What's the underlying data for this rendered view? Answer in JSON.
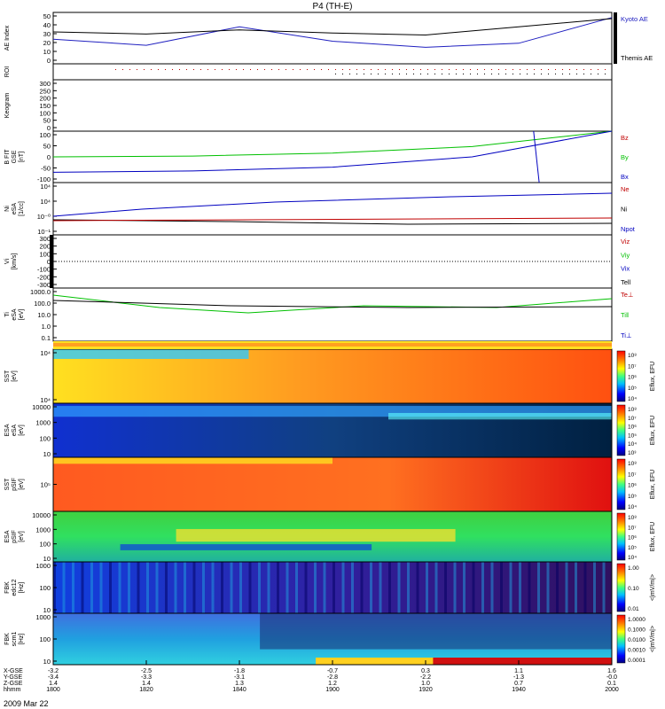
{
  "title": "P4 (TH-E)",
  "date_label": "2009 Mar 22",
  "bottom_axis": {
    "row_labels": [
      "X-GSE",
      "Y-GSE",
      "Z-GSE",
      "hhmm"
    ],
    "columns": [
      {
        "x": "-3.2",
        "y": "-3.4",
        "z": "1.4",
        "t": "1800"
      },
      {
        "x": "-2.5",
        "y": "-3.3",
        "z": "1.4",
        "t": "1820"
      },
      {
        "x": "-1.8",
        "y": "-3.1",
        "z": "1.3",
        "t": "1840"
      },
      {
        "x": "-0.7",
        "y": "-2.8",
        "z": "1.2",
        "t": "1900"
      },
      {
        "x": "0.3",
        "y": "-2.2",
        "z": "1.0",
        "t": "1920"
      },
      {
        "x": "1.1",
        "y": "-1.3",
        "z": "0.7",
        "t": "1940"
      },
      {
        "x": "1.6",
        "y": "-0.0",
        "z": "0.1",
        "t": "2000"
      }
    ]
  },
  "panels": [
    {
      "id": "ae",
      "ylabel": [
        "AE Index"
      ],
      "ticks": [
        "50",
        "40",
        "30",
        "20",
        "10",
        "0"
      ],
      "legend": [
        {
          "text": "Kyoto AE",
          "color": "#2020c0"
        },
        {
          "text": "Themis AE",
          "color": "#000000"
        }
      ]
    },
    {
      "id": "roi",
      "ylabel": [
        "ROI"
      ],
      "ticks": [],
      "legend": []
    },
    {
      "id": "keogram",
      "ylabel": [
        "Keogram"
      ],
      "ticks": [
        "300",
        "250",
        "200",
        "150",
        "100",
        "50",
        "0"
      ],
      "legend": []
    },
    {
      "id": "bfit",
      "ylabel": [
        "B FIT",
        "GSE",
        "[nT]"
      ],
      "ticks": [
        "100",
        "50",
        "0",
        "-50",
        "-100"
      ],
      "legend": [
        {
          "text": "Bz",
          "color": "#c00000"
        },
        {
          "text": "By",
          "color": "#00c000"
        },
        {
          "text": "Bx",
          "color": "#0000c0"
        }
      ]
    },
    {
      "id": "ni",
      "ylabel": [
        "Ni",
        "eSA",
        "[1/cc]"
      ],
      "ticks": [
        "10⁴",
        "10⁴",
        "10⁻⁰",
        "10⁻¹"
      ],
      "legend": [
        {
          "text": "Ne",
          "color": "#c00000"
        },
        {
          "text": "Ni",
          "color": "#000000"
        },
        {
          "text": "Npot",
          "color": "#0000c0"
        }
      ]
    },
    {
      "id": "vi",
      "ylabel": [
        "Vi",
        "[km/s]"
      ],
      "ticks": [
        "300",
        "200",
        "100",
        "0",
        "-100",
        "-200",
        "-300"
      ],
      "legend": [
        {
          "text": "Viz",
          "color": "#c00000"
        },
        {
          "text": "Viy",
          "color": "#00c000"
        },
        {
          "text": "Vix",
          "color": "#0000c0"
        },
        {
          "text": "Tell",
          "color": "#000000"
        }
      ]
    },
    {
      "id": "ti",
      "ylabel": [
        "Ti",
        "eSA",
        "[eV]"
      ],
      "ticks": [
        "1000.0",
        "100.0",
        "10.0",
        "1.0",
        "0.1"
      ],
      "legend": [
        {
          "text": "Te⊥",
          "color": "#c00000"
        },
        {
          "text": "Ti‖",
          "color": "#00c000"
        },
        {
          "text": "Ti⊥",
          "color": "#0000c0"
        }
      ]
    },
    {
      "id": "sst_e",
      "ylabel": [
        "SST",
        "[eV]"
      ],
      "ticks": [
        "10⁴",
        "10⁴"
      ],
      "legend": [],
      "cbar": {
        "label": "Eflux, EFU",
        "ticks": [
          "10⁸",
          "10⁷",
          "10⁶",
          "10⁵",
          "10⁴"
        ]
      }
    },
    {
      "id": "esa_e",
      "ylabel": [
        "ESA",
        "eSA",
        "[eV]"
      ],
      "ticks": [
        "10000",
        "1000",
        "100",
        "10"
      ],
      "legend": [],
      "cbar": {
        "label": "Eflux, EFU",
        "ticks": [
          "10⁸",
          "10⁷",
          "10⁶",
          "10⁵",
          "10⁴",
          "10³"
        ]
      }
    },
    {
      "id": "sst_i",
      "ylabel": [
        "SST",
        "pSIF",
        "[eV]"
      ],
      "ticks": [
        "10⁵"
      ],
      "legend": [],
      "cbar": {
        "label": "Eflux, EFU",
        "ticks": [
          "10⁸",
          "10⁷",
          "10⁶",
          "10⁵",
          "10⁴"
        ]
      }
    },
    {
      "id": "esa_i",
      "ylabel": [
        "ESA",
        "pSIF",
        "[eV]"
      ],
      "ticks": [
        "10000",
        "1000",
        "100",
        "10"
      ],
      "legend": [],
      "cbar": {
        "label": "Eflux, EFU",
        "ticks": [
          "10⁸",
          "10⁷",
          "10⁶",
          "10⁵",
          "10⁴"
        ]
      }
    },
    {
      "id": "fbk_e",
      "ylabel": [
        "FBK",
        "edc12",
        "[Hz]"
      ],
      "ticks": [
        "1000",
        "100",
        "10"
      ],
      "legend": [],
      "cbar": {
        "label": "<|mV/m|>",
        "ticks": [
          "1.00",
          "0.10",
          "0.01"
        ]
      }
    },
    {
      "id": "fbk_b",
      "ylabel": [
        "FBK",
        "scm1",
        "[Hz]"
      ],
      "ticks": [
        "1000",
        "100",
        "10"
      ],
      "legend": [],
      "cbar": {
        "label": "<|mV/m|>",
        "ticks": [
          "1.0000",
          "0.1000",
          "0.0100",
          "0.0010",
          "0.0001"
        ]
      }
    }
  ],
  "chart_data": [
    {
      "type": "line",
      "title": "P4 (TH-E)",
      "ylabel": "AE Index",
      "ylim": [
        0,
        50
      ],
      "x": [
        "1800",
        "1820",
        "1840",
        "1900",
        "1920",
        "1940",
        "2000"
      ],
      "series": [
        {
          "name": "Kyoto AE",
          "color": "#2020c0",
          "values": [
            24,
            18,
            36,
            22,
            16,
            20,
            45
          ]
        },
        {
          "name": "Themis AE",
          "color": "#000000",
          "values": [
            31,
            29,
            33,
            30,
            28,
            36,
            44
          ]
        }
      ]
    },
    {
      "type": "line",
      "ylabel": "B FIT GSE [nT]",
      "ylim": [
        -100,
        100
      ],
      "series": [
        {
          "name": "By",
          "color": "#00c000",
          "values": [
            0,
            3,
            15,
            40,
            100
          ]
        },
        {
          "name": "Bx",
          "color": "#0000c0",
          "values": [
            -60,
            -55,
            -40,
            0,
            100
          ]
        }
      ]
    },
    {
      "type": "line",
      "ylabel": "Vi [km/s]",
      "ylim": [
        -300,
        300
      ],
      "series": []
    },
    {
      "type": "heatmap",
      "ylabel": "SST [eV]",
      "colorbar": "Eflux, EFU"
    },
    {
      "type": "heatmap",
      "ylabel": "ESA eSA [eV]",
      "colorbar": "Eflux, EFU"
    },
    {
      "type": "heatmap",
      "ylabel": "SST pSIF [eV]",
      "colorbar": "Eflux, EFU"
    },
    {
      "type": "heatmap",
      "ylabel": "ESA pSIF [eV]",
      "colorbar": "Eflux, EFU"
    },
    {
      "type": "heatmap",
      "ylabel": "FBK edc12 [Hz]",
      "colorbar": "<|mV/m|>"
    },
    {
      "type": "heatmap",
      "ylabel": "FBK scm1 [Hz]",
      "colorbar": "<|mV/m|>"
    }
  ]
}
